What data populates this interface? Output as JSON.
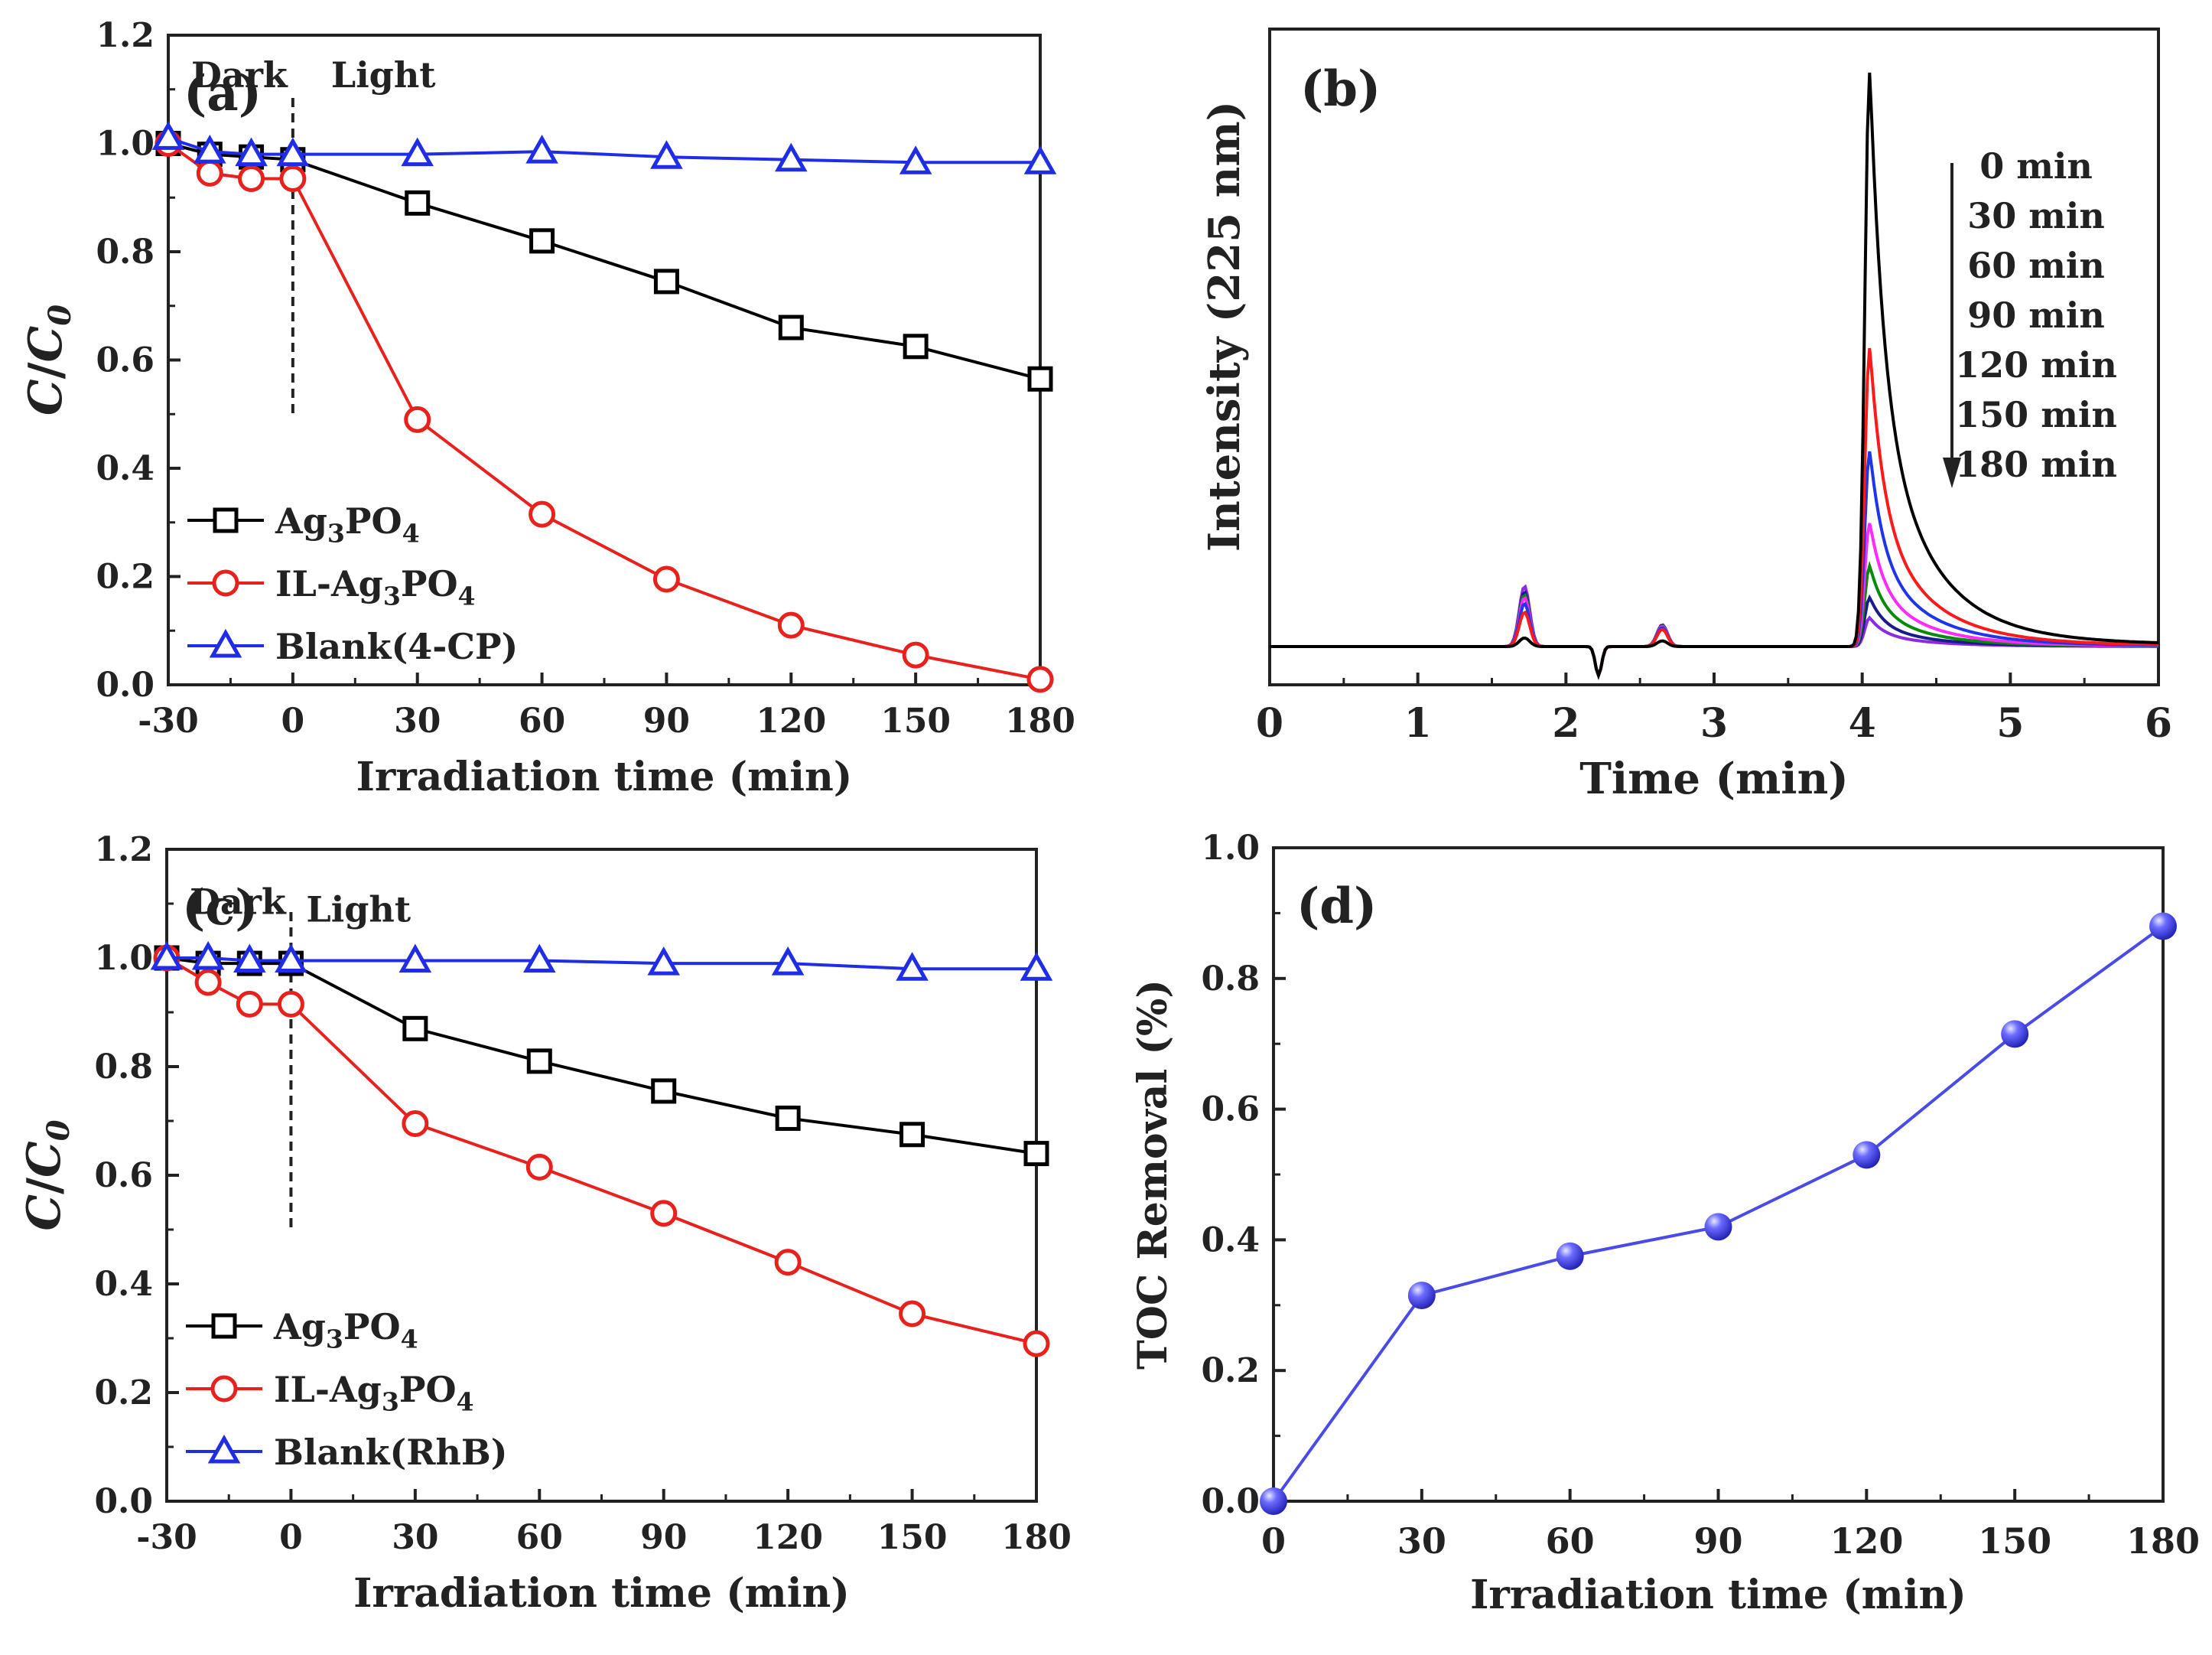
{
  "chart_data": [
    {
      "panel": "(a)",
      "type": "line",
      "xlabel": "Irradiation time (min)",
      "ylabel_main": "C",
      "ylabel_sub": "C",
      "ylabel_subscript": "0",
      "xlim": [
        -30,
        180
      ],
      "ylim": [
        0.0,
        1.2
      ],
      "xticks": [
        "-30",
        "0",
        "30",
        "60",
        "90",
        "120",
        "150",
        "180"
      ],
      "yticks": [
        "0.0",
        "0.2",
        "0.4",
        "0.6",
        "0.8",
        "1.0",
        "1.2"
      ],
      "annotations": {
        "dark": "Dark",
        "light": "Light"
      },
      "divider_x": 0,
      "series": [
        {
          "name": "Ag3PO4",
          "label_parts": [
            "Ag",
            "3",
            "PO",
            "4"
          ],
          "color": "#000000",
          "marker": "square",
          "x": [
            -30,
            -20,
            -10,
            0,
            30,
            60,
            90,
            120,
            150,
            180
          ],
          "values": [
            1.0,
            0.98,
            0.975,
            0.97,
            0.89,
            0.82,
            0.745,
            0.66,
            0.625,
            0.565
          ]
        },
        {
          "name": "IL-Ag3PO4",
          "label_parts": [
            "IL-Ag",
            "3",
            "PO",
            "4"
          ],
          "color": "#e8211c",
          "marker": "circle",
          "x": [
            -30,
            -20,
            -10,
            0,
            30,
            60,
            90,
            120,
            150,
            180
          ],
          "values": [
            1.0,
            0.945,
            0.935,
            0.935,
            0.49,
            0.315,
            0.195,
            0.11,
            0.055,
            0.01
          ]
        },
        {
          "name": "Blank(4-CP)",
          "label_parts": [
            "Blank(4-CP)"
          ],
          "color": "#1f2ee6",
          "marker": "triangle",
          "x": [
            -30,
            -20,
            -10,
            0,
            30,
            60,
            90,
            120,
            150,
            180
          ],
          "values": [
            1.01,
            0.985,
            0.98,
            0.98,
            0.98,
            0.985,
            0.975,
            0.97,
            0.965,
            0.965
          ]
        }
      ]
    },
    {
      "panel": "(b)",
      "type": "line",
      "xlabel": "Time (min)",
      "ylabel": "Intensity  (225 nm)",
      "xlim": [
        0,
        6
      ],
      "xticks": [
        "0",
        "1",
        "2",
        "3",
        "4",
        "5",
        "6"
      ],
      "legend_times": [
        "0 min",
        "30 min",
        "60 min",
        "90 min",
        "120 min",
        "150 min",
        "180 min"
      ],
      "series": [
        {
          "name": "0 min",
          "color": "#000000",
          "peak1": 0.015,
          "peak2": 0.01,
          "peak3": 1.0
        },
        {
          "name": "30 min",
          "color": "#ff1a1a",
          "peak1": 0.06,
          "peak2": 0.03,
          "peak3": 0.52
        },
        {
          "name": "60 min",
          "color": "#1f35e8",
          "peak1": 0.075,
          "peak2": 0.033,
          "peak3": 0.34
        },
        {
          "name": "90 min",
          "color": "#ff2aff",
          "peak1": 0.085,
          "peak2": 0.035,
          "peak3": 0.215
        },
        {
          "name": "120 min",
          "color": "#0a8a0a",
          "peak1": 0.09,
          "peak2": 0.036,
          "peak3": 0.14
        },
        {
          "name": "150 min",
          "color": "#1a1a8c",
          "peak1": 0.095,
          "peak2": 0.037,
          "peak3": 0.085
        },
        {
          "name": "180 min",
          "color": "#8a2be2",
          "peak1": 0.105,
          "peak2": 0.038,
          "peak3": 0.05
        }
      ]
    },
    {
      "panel": "(c)",
      "type": "line",
      "xlabel": "Irradiation time (min)",
      "ylabel_main": "C",
      "ylabel_sub": "C",
      "ylabel_subscript": "0",
      "xlim": [
        -30,
        180
      ],
      "ylim": [
        0.0,
        1.2
      ],
      "xticks": [
        "-30",
        "0",
        "30",
        "60",
        "90",
        "120",
        "150",
        "180"
      ],
      "yticks": [
        "0.0",
        "0.2",
        "0.4",
        "0.6",
        "0.8",
        "1.0",
        "1.2"
      ],
      "annotations": {
        "dark": "Dark",
        "light": "Light"
      },
      "divider_x": 0,
      "series": [
        {
          "name": "Ag3PO4",
          "label_parts": [
            "Ag",
            "3",
            "PO",
            "4"
          ],
          "color": "#000000",
          "marker": "square",
          "x": [
            -30,
            -20,
            -10,
            0,
            30,
            60,
            90,
            120,
            150,
            180
          ],
          "values": [
            1.0,
            0.99,
            0.99,
            0.99,
            0.87,
            0.81,
            0.755,
            0.705,
            0.675,
            0.64
          ]
        },
        {
          "name": "IL-Ag3PO4",
          "label_parts": [
            "IL-Ag",
            "3",
            "PO",
            "4"
          ],
          "color": "#e8211c",
          "marker": "circle",
          "x": [
            -30,
            -20,
            -10,
            0,
            30,
            60,
            90,
            120,
            150,
            180
          ],
          "values": [
            1.0,
            0.955,
            0.915,
            0.915,
            0.695,
            0.615,
            0.53,
            0.44,
            0.345,
            0.29
          ]
        },
        {
          "name": "Blank(RhB)",
          "label_parts": [
            "Blank(RhB)"
          ],
          "color": "#1f2ee6",
          "marker": "triangle",
          "x": [
            -30,
            -20,
            -10,
            0,
            30,
            60,
            90,
            120,
            150,
            180
          ],
          "values": [
            1.0,
            1.0,
            0.995,
            0.995,
            0.995,
            0.995,
            0.99,
            0.99,
            0.98,
            0.98
          ]
        }
      ]
    },
    {
      "panel": "(d)",
      "type": "line",
      "xlabel": "Irradiation time (min)",
      "ylabel": "TOC Removal (%)",
      "xlim": [
        0,
        180
      ],
      "ylim": [
        0.0,
        1.0
      ],
      "xticks": [
        "0",
        "30",
        "60",
        "90",
        "120",
        "150",
        "180"
      ],
      "yticks": [
        "0.0",
        "0.2",
        "0.4",
        "0.6",
        "0.8",
        "1.0"
      ],
      "series": [
        {
          "name": "TOC Removal",
          "color": "#4a4ae8",
          "marker": "sphere",
          "x": [
            0,
            30,
            60,
            90,
            120,
            150,
            180
          ],
          "values": [
            0.0,
            0.315,
            0.375,
            0.42,
            0.53,
            0.715,
            0.88
          ]
        }
      ]
    }
  ]
}
